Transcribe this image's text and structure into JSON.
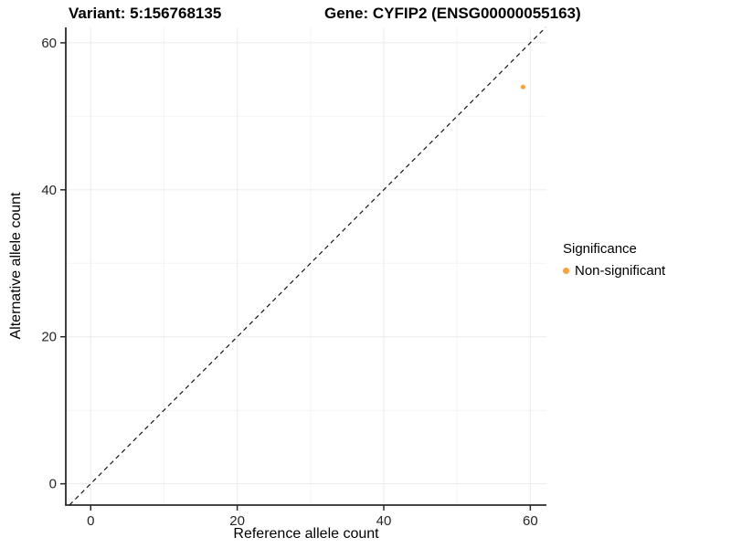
{
  "titles": {
    "left": "Variant: 5:156768135",
    "right": "Gene: CYFIP2 (ENSG00000055163)"
  },
  "chart_data": {
    "type": "scatter",
    "xlabel": "Reference allele count",
    "ylabel": "Alternative allele count",
    "xlim": [
      -3.4,
      62.2
    ],
    "ylim": [
      -2.9,
      62.1
    ],
    "x_ticks": [
      0,
      20,
      40,
      60
    ],
    "y_ticks": [
      0,
      20,
      40,
      60
    ],
    "x_minor_ticks": [
      10,
      30,
      50
    ],
    "y_minor_ticks": [
      10,
      30,
      50
    ],
    "grid": "on",
    "identity_line": {
      "equation": "y = x",
      "style": "dashed",
      "color": "#111111"
    },
    "series": [
      {
        "name": "Non-significant",
        "color": "#F9A242",
        "points": [
          {
            "x": 59,
            "y": 54
          }
        ]
      }
    ],
    "point_radius": 2.6
  },
  "legend": {
    "title": "Significance",
    "position": "right",
    "items": [
      {
        "label": "Non-significant",
        "color": "#F9A242"
      }
    ]
  },
  "colors": {
    "background": "#ffffff",
    "grid_major": "#ebebeb",
    "grid_minor": "#f4f4f4",
    "axis_line": "#2b2b2b",
    "tick_label": "#262626"
  }
}
